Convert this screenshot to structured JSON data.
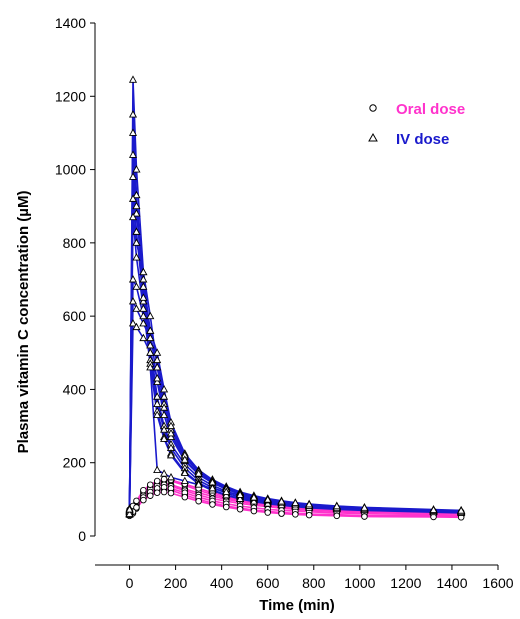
{
  "chart_data": {
    "type": "line",
    "xlabel": "Time (min)",
    "ylabel": "Plasma vitamin C concentration (µM)",
    "xlim": [
      -150,
      1600
    ],
    "ylim": [
      0,
      1400
    ],
    "xticks": [
      0,
      200,
      400,
      600,
      800,
      1000,
      1200,
      1400,
      1600
    ],
    "yticks": [
      0,
      200,
      400,
      600,
      800,
      1000,
      1200,
      1400
    ],
    "legend_position": "top-right",
    "colors": {
      "oral": "#ff33cc",
      "iv": "#1a1acc",
      "marker": "#000000"
    },
    "series": [
      {
        "name": "Oral dose",
        "group": "oral",
        "marker": "circle",
        "subjects": [
          {
            "x": [
              0,
              15,
              30,
              60,
              90,
              120,
              150,
              180,
              240,
              300,
              360,
              420,
              480,
              540,
              600,
              660,
              720,
              780,
              900,
              1020,
              1320,
              1440
            ],
            "y": [
              62,
              72,
              88,
              115,
              130,
              142,
              145,
              140,
              128,
              118,
              108,
              100,
              94,
              88,
              84,
              80,
              76,
              73,
              70,
              68,
              65,
              63
            ]
          },
          {
            "x": [
              0,
              15,
              30,
              60,
              90,
              120,
              150,
              180,
              240,
              300,
              360,
              420,
              480,
              540,
              600,
              660,
              720,
              780,
              900,
              1020,
              1320,
              1440
            ],
            "y": [
              70,
              78,
              92,
              120,
              135,
              148,
              152,
              150,
              138,
              125,
              113,
              104,
              97,
              92,
              87,
              83,
              79,
              76,
              72,
              70,
              66,
              65
            ]
          },
          {
            "x": [
              0,
              15,
              30,
              60,
              90,
              120,
              150,
              180,
              240,
              300,
              360,
              420,
              480,
              540,
              600,
              660,
              720,
              780,
              900,
              1020,
              1320,
              1440
            ],
            "y": [
              55,
              62,
              75,
              100,
              115,
              125,
              128,
              125,
              112,
              100,
              90,
              82,
              76,
              71,
              67,
              64,
              62,
              60,
              58,
              56,
              55,
              54
            ]
          },
          {
            "x": [
              0,
              15,
              30,
              60,
              90,
              120,
              150,
              180,
              240,
              300,
              360,
              420,
              480,
              540,
              600,
              660,
              720,
              780,
              900,
              1020,
              1320,
              1440
            ],
            "y": [
              65,
              75,
              85,
              110,
              128,
              138,
              140,
              136,
              124,
              112,
              102,
              95,
              89,
              84,
              80,
              76,
              73,
              70,
              67,
              65,
              62,
              61
            ]
          },
          {
            "x": [
              0,
              15,
              30,
              60,
              90,
              120,
              150,
              180,
              240,
              300,
              360,
              420,
              480,
              540,
              600,
              660,
              720,
              780,
              900,
              1020,
              1320,
              1440
            ],
            "y": [
              60,
              70,
              80,
              105,
              120,
              130,
              133,
              130,
              118,
              106,
              96,
              88,
              82,
              77,
              73,
              70,
              68,
              66,
              63,
              61,
              58,
              57
            ]
          },
          {
            "x": [
              0,
              15,
              30,
              60,
              90,
              120,
              150,
              180,
              240,
              300,
              360,
              420,
              480,
              540,
              600,
              660,
              720,
              780,
              900,
              1020,
              1320,
              1440
            ],
            "y": [
              72,
              82,
              96,
              125,
              140,
              150,
              155,
              153,
              142,
              130,
              118,
              108,
              100,
              94,
              89,
              85,
              81,
              78,
              74,
              71,
              68,
              66
            ]
          },
          {
            "x": [
              0,
              15,
              30,
              60,
              90,
              120,
              150,
              180,
              240,
              300,
              360,
              420,
              480,
              540,
              600,
              660,
              720,
              780,
              900,
              1020,
              1320,
              1440
            ],
            "y": [
              58,
              66,
              78,
              98,
              110,
              118,
              120,
              117,
              106,
              95,
              86,
              79,
              73,
              68,
              64,
              61,
              59,
              57,
              55,
              53,
              52,
              51
            ]
          }
        ]
      },
      {
        "name": "IV dose",
        "group": "iv",
        "marker": "triangle",
        "subjects": [
          {
            "x": [
              0,
              15,
              30,
              60,
              90,
              120,
              150,
              180,
              240,
              300,
              360,
              420,
              480,
              540,
              600,
              660,
              720,
              780,
              900,
              1020,
              1320,
              1440
            ],
            "y": [
              65,
              1245,
              1000,
              720,
              520,
              380,
              300,
              250,
              195,
              160,
              138,
              122,
              110,
              101,
              95,
              90,
              86,
              82,
              77,
              73,
              68,
              66
            ]
          },
          {
            "x": [
              0,
              15,
              30,
              60,
              90,
              120,
              150,
              180,
              240,
              300,
              360,
              420,
              480,
              540,
              600,
              660,
              720,
              780,
              900,
              1020,
              1320,
              1440
            ],
            "y": [
              70,
              1150,
              930,
              680,
              500,
              360,
              290,
              240,
              185,
              152,
              132,
              117,
              106,
              98,
              92,
              87,
              83,
              80,
              75,
              72,
              67,
              65
            ]
          },
          {
            "x": [
              0,
              15,
              30,
              60,
              90,
              120,
              150,
              180,
              240,
              300,
              360,
              420,
              480,
              540,
              600,
              660,
              720,
              780,
              900,
              1020,
              1320,
              1440
            ],
            "y": [
              60,
              1040,
              880,
              700,
              560,
              420,
              330,
              270,
              205,
              168,
              145,
              128,
              115,
              105,
              98,
              92,
              88,
              84,
              79,
              75,
              70,
              68
            ]
          },
          {
            "x": [
              0,
              15,
              30,
              60,
              90,
              120,
              150,
              180,
              240,
              300,
              360,
              420,
              480,
              540,
              600,
              660,
              720,
              780,
              900,
              1020,
              1320,
              1440
            ],
            "y": [
              68,
              980,
              830,
              640,
              480,
              340,
              270,
              225,
              175,
              145,
              126,
              112,
              102,
              95,
              89,
              85,
              81,
              78,
              74,
              71,
              66,
              64
            ]
          },
          {
            "x": [
              0,
              15,
              30,
              60,
              90,
              120,
              150,
              180,
              240,
              300,
              360,
              420,
              480,
              540,
              600,
              660,
              720,
              780,
              900,
              1020,
              1320,
              1440
            ],
            "y": [
              62,
              920,
              800,
              720,
              600,
              460,
              360,
              290,
              215,
              175,
              150,
              132,
              118,
              108,
              100,
              94,
              89,
              85,
              80,
              76,
              71,
              69
            ]
          },
          {
            "x": [
              0,
              15,
              30,
              60,
              90,
              120,
              150,
              180,
              240,
              300,
              360,
              420,
              480,
              540,
              600,
              660,
              720,
              780,
              900,
              1020,
              1320,
              1440
            ],
            "y": [
              75,
              870,
              760,
              620,
              470,
              330,
              265,
              220,
              172,
              142,
              124,
              111,
              101,
              94,
              88,
              84,
              80,
              77,
              73,
              70,
              65,
              63
            ]
          },
          {
            "x": [
              0,
              15,
              30,
              60,
              90,
              120,
              150,
              180,
              240,
              300,
              360,
              420,
              480,
              540,
              600,
              660,
              720,
              780,
              900,
              1020,
              1320,
              1440
            ],
            "y": [
              58,
              700,
              680,
              600,
              560,
              500,
              400,
              310,
              225,
              180,
              154,
              135,
              120,
              110,
              102,
              96,
              91,
              87,
              82,
              78,
              72,
              70
            ]
          },
          {
            "x": [
              0,
              15,
              30,
              60,
              90,
              120,
              150,
              180,
              240,
              300,
              360,
              420,
              480,
              540,
              600,
              660,
              720,
              780,
              900,
              1020,
              1320,
              1440
            ],
            "y": [
              66,
              640,
              620,
              580,
              540,
              480,
              380,
              300,
              220,
              176,
              150,
              131,
              116,
              106,
              98,
              92,
              87,
              83,
              78,
              74,
              69,
              67
            ]
          },
          {
            "x": [
              0,
              15,
              30,
              60,
              90,
              120,
              150,
              180,
              240,
              300,
              360,
              420,
              480,
              540,
              600,
              660,
              720,
              780,
              900,
              1020,
              1320,
              1440
            ],
            "y": [
              60,
              580,
              570,
              540,
              500,
              430,
              350,
              280,
              208,
              170,
              146,
              128,
              114,
              104,
              97,
              91,
              86,
              82,
              77,
              73,
              68,
              66
            ]
          },
          {
            "x": [
              0,
              15,
              30,
              60,
              90,
              120,
              150,
              180,
              240,
              300,
              360,
              420,
              480,
              540,
              600,
              660,
              720,
              780,
              900,
              1020,
              1320,
              1440
            ],
            "y": [
              72,
              1100,
              900,
              650,
              460,
              180,
              170,
              160,
              150,
              140,
              130,
              120,
              112,
              105,
              99,
              94,
              90,
              86,
              81,
              77,
              71,
              69
            ]
          }
        ]
      }
    ]
  }
}
